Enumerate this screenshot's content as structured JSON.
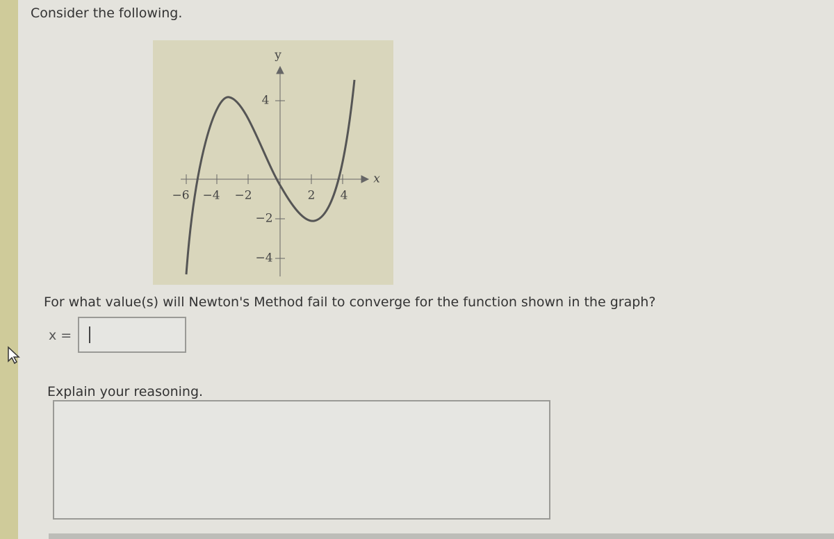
{
  "prompt": "Consider the following.",
  "graph": {
    "y_label": "y",
    "x_label": "x",
    "x_ticks": [
      "−6",
      "−4",
      "−2",
      "2",
      "4"
    ],
    "y_ticks": [
      "4",
      "−2",
      "−4"
    ]
  },
  "question": "For what value(s) will Newton's Method fail to converge for the function shown in the graph?",
  "answer_label": "x =",
  "explain": "Explain your reasoning."
}
